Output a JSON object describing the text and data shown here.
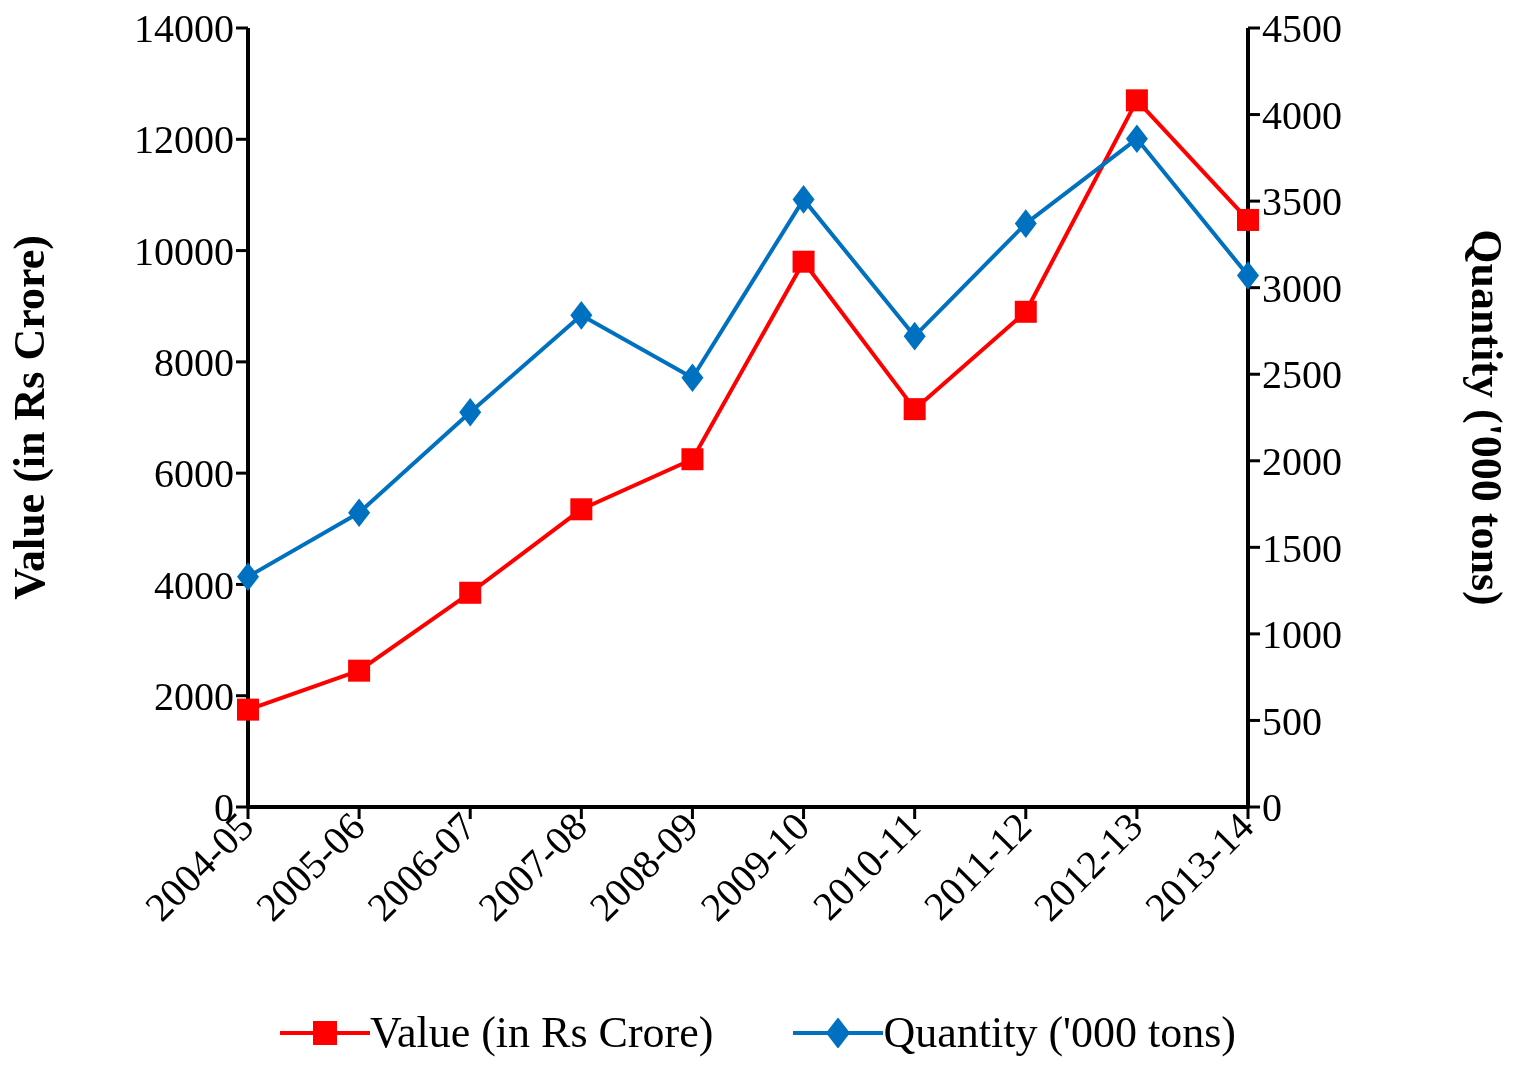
{
  "chart_data": {
    "type": "line",
    "categories": [
      "2004-05",
      "2005-06",
      "2006-07",
      "2007-08",
      "2008-09",
      "2009-10",
      "2010-11",
      "2011-12",
      "2012-13",
      "2013-14"
    ],
    "series": [
      {
        "name": "Value (in Rs Crore)",
        "color": "#ff0000",
        "marker": "square",
        "values": [
          1750,
          2450,
          3850,
          5350,
          6250,
          9800,
          7150,
          8900,
          12700,
          10550
        ]
      },
      {
        "name": "Quantity ('000 tons)",
        "color": "#0070c0",
        "marker": "diamond",
        "axis": "y2",
        "values": [
          1330,
          1700,
          2280,
          2840,
          2480,
          3510,
          2720,
          3370,
          3860,
          3070
        ]
      }
    ],
    "ylabel": "Value (in Rs Crore)",
    "y2label": "Quantity ('000 tons)",
    "ylim": [
      0,
      14000
    ],
    "yticks": [
      0,
      2000,
      4000,
      6000,
      8000,
      10000,
      12000,
      14000
    ],
    "y2lim": [
      0,
      4500
    ],
    "y2ticks": [
      0,
      500,
      1000,
      1500,
      2000,
      2500,
      3000,
      3500,
      4000,
      4500
    ],
    "grid": false,
    "legend": "bottom",
    "line_style": "solid"
  }
}
